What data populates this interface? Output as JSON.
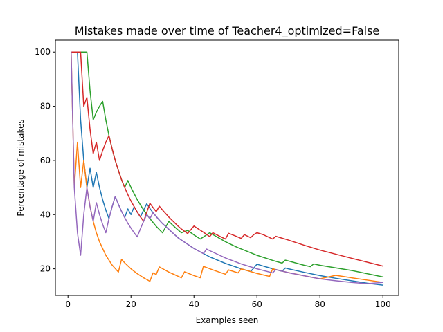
{
  "chart_data": {
    "type": "line",
    "title": "Mistakes made over time of Teacher4_optimized=False",
    "xlabel": "Examples seen",
    "ylabel": "Percentage of mistakes",
    "xlim": [
      -4.0,
      105.0
    ],
    "ylim": [
      10.2,
      104.4
    ],
    "xticks": [
      0,
      20,
      40,
      60,
      80,
      100
    ],
    "yticks": [
      20,
      40,
      60,
      80,
      100
    ],
    "grid": false,
    "legend": "none",
    "series": [
      {
        "color": "#1f77b4",
        "x": [
          1,
          2,
          3,
          4,
          5,
          6,
          7,
          8,
          9,
          10,
          11,
          12,
          13,
          14,
          15,
          16,
          17,
          18,
          19,
          20,
          21,
          22,
          23,
          24,
          25,
          26,
          27,
          28,
          29,
          30,
          35,
          40,
          45,
          50,
          55,
          58,
          59,
          60,
          65,
          68,
          69,
          70,
          75,
          80,
          85,
          90,
          95,
          100
        ],
        "y": [
          100,
          100,
          100,
          75.0,
          60.0,
          50.0,
          57.1,
          50.0,
          55.6,
          50.0,
          45.5,
          41.7,
          38.5,
          42.9,
          46.7,
          43.8,
          41.2,
          38.9,
          42.1,
          40.0,
          42.9,
          40.9,
          39.1,
          41.7,
          44.0,
          42.3,
          40.7,
          39.3,
          37.9,
          36.7,
          31.4,
          27.5,
          24.4,
          22.0,
          20.0,
          19.0,
          20.3,
          21.7,
          20.0,
          19.1,
          20.3,
          20.0,
          18.7,
          17.5,
          16.5,
          15.6,
          14.7,
          14.0
        ]
      },
      {
        "color": "#ff7f0e",
        "x": [
          1,
          2,
          3,
          4,
          5,
          6,
          7,
          8,
          9,
          10,
          12,
          14,
          16,
          17,
          18,
          20,
          22,
          24,
          26,
          27,
          28,
          29,
          32,
          36,
          37,
          40,
          42,
          43,
          46,
          50,
          51,
          54,
          55,
          60,
          64,
          65,
          70,
          80,
          85,
          90,
          100
        ],
        "y": [
          100,
          50.0,
          66.7,
          50.0,
          60.0,
          50.0,
          42.9,
          37.5,
          33.3,
          30.0,
          25.0,
          21.4,
          18.8,
          23.5,
          22.2,
          20.0,
          18.2,
          16.7,
          15.4,
          18.5,
          17.9,
          20.7,
          18.8,
          16.7,
          18.9,
          17.5,
          16.7,
          20.9,
          19.6,
          18.0,
          19.6,
          18.5,
          20.0,
          18.3,
          17.2,
          20.0,
          18.6,
          16.3,
          17.6,
          16.7,
          15.0
        ]
      },
      {
        "color": "#2ca02c",
        "x": [
          1,
          2,
          3,
          4,
          5,
          6,
          7,
          8,
          9,
          10,
          11,
          12,
          13,
          14,
          15,
          16,
          17,
          18,
          19,
          20,
          22,
          24,
          26,
          28,
          30,
          32,
          34,
          36,
          38,
          40,
          42,
          45,
          50,
          53,
          54,
          60,
          65,
          68,
          69,
          70,
          75,
          77,
          78,
          80,
          90,
          100
        ],
        "y": [
          100,
          100,
          100,
          100,
          100,
          100,
          85.7,
          75.0,
          77.8,
          80.0,
          81.8,
          75.0,
          69.2,
          64.3,
          60.0,
          56.3,
          52.9,
          50.0,
          52.6,
          50.0,
          45.5,
          41.7,
          38.5,
          35.7,
          33.3,
          37.5,
          35.3,
          33.3,
          34.2,
          32.5,
          31.0,
          33.3,
          30.0,
          28.3,
          27.8,
          25.0,
          23.1,
          22.1,
          23.2,
          22.9,
          21.3,
          20.8,
          21.8,
          21.3,
          19.4,
          17.0
        ]
      },
      {
        "color": "#d62728",
        "x": [
          1,
          2,
          3,
          4,
          5,
          6,
          7,
          8,
          9,
          10,
          11,
          12,
          13,
          14,
          15,
          16,
          17,
          18,
          19,
          20,
          22,
          24,
          26,
          27,
          28,
          29,
          30,
          32,
          35,
          36,
          38,
          40,
          41,
          43,
          45,
          46,
          48,
          50,
          51,
          53,
          55,
          56,
          58,
          59,
          60,
          62,
          65,
          66,
          70,
          75,
          80,
          90,
          100
        ],
        "y": [
          100,
          100,
          100,
          100,
          80.0,
          83.3,
          71.4,
          62.5,
          66.7,
          60.0,
          63.6,
          66.7,
          69.2,
          64.3,
          60.0,
          56.3,
          52.9,
          50.0,
          47.4,
          45.0,
          40.9,
          37.5,
          44.2,
          42.6,
          41.1,
          43.1,
          41.7,
          39.1,
          35.7,
          34.7,
          33.0,
          35.8,
          35.0,
          33.5,
          31.9,
          33.3,
          32.1,
          31.0,
          33.1,
          32.2,
          31.2,
          32.6,
          31.5,
          32.6,
          33.3,
          32.6,
          31.0,
          32.0,
          30.6,
          28.7,
          26.9,
          23.9,
          21.0
        ]
      },
      {
        "color": "#9467bd",
        "x": [
          1,
          2,
          3,
          4,
          5,
          6,
          7,
          8,
          9,
          10,
          11,
          12,
          13,
          14,
          15,
          16,
          17,
          18,
          19,
          20,
          21,
          22,
          23,
          24,
          25,
          26,
          27,
          28,
          30,
          35,
          40,
          43,
          44,
          45,
          50,
          55,
          60,
          65,
          66,
          70,
          71,
          72,
          80,
          85,
          90,
          95,
          100
        ],
        "y": [
          100,
          50.0,
          33.3,
          25.0,
          40.0,
          50.0,
          42.9,
          37.5,
          44.4,
          40.0,
          36.4,
          33.3,
          38.5,
          42.9,
          46.7,
          43.8,
          41.2,
          38.9,
          36.8,
          35.0,
          33.3,
          31.8,
          34.8,
          37.5,
          40.0,
          38.5,
          40.7,
          39.3,
          36.7,
          31.4,
          27.5,
          25.6,
          27.3,
          26.7,
          24.0,
          21.8,
          20.0,
          18.5,
          19.7,
          18.6,
          18.3,
          18.1,
          16.3,
          15.6,
          15.0,
          14.5,
          15.0
        ]
      }
    ]
  }
}
